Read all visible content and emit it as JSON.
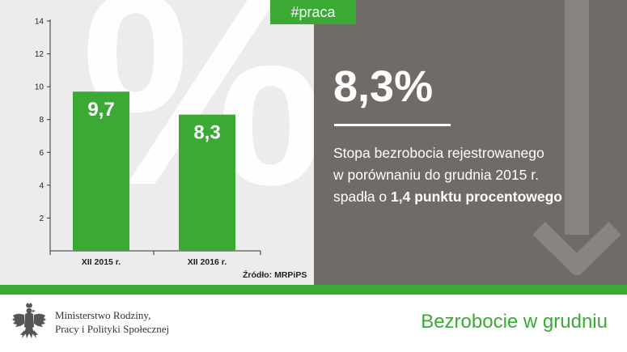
{
  "tag": "#praca",
  "kpi": {
    "value": "8,3%",
    "description_line1": "Stopa bezrobocia rejestrowanego",
    "description_line2": "w porównaniu do grudnia 2015 r.",
    "description_line3_prefix": "spadła o ",
    "description_line3_bold": "1,4 punktu procentowego"
  },
  "background_symbol": "%",
  "source": "Źródło: MRPiPS",
  "footer": {
    "ministry_line1": "Ministerstwo Rodziny,",
    "ministry_line2": "Pracy i Polityki Społecznej",
    "title": "Bezrobocie w grudniu",
    "logo_icon": "polish-eagle-emblem-icon"
  },
  "colors": {
    "accent_green": "#3aaa35",
    "panel_grey": "#716b68",
    "chart_bg": "#ececec"
  },
  "chart_data": {
    "type": "bar",
    "categories": [
      "XII 2015 r.",
      "XII 2016 r."
    ],
    "values": [
      9.7,
      8.3
    ],
    "data_labels": [
      "9,7",
      "8,3"
    ],
    "title": "",
    "xlabel": "",
    "ylabel": "",
    "ylim": [
      0,
      14
    ],
    "yticks": [
      2,
      4,
      6,
      8,
      10,
      12,
      14
    ],
    "grid": false,
    "bar_color": "#3aaa35"
  }
}
